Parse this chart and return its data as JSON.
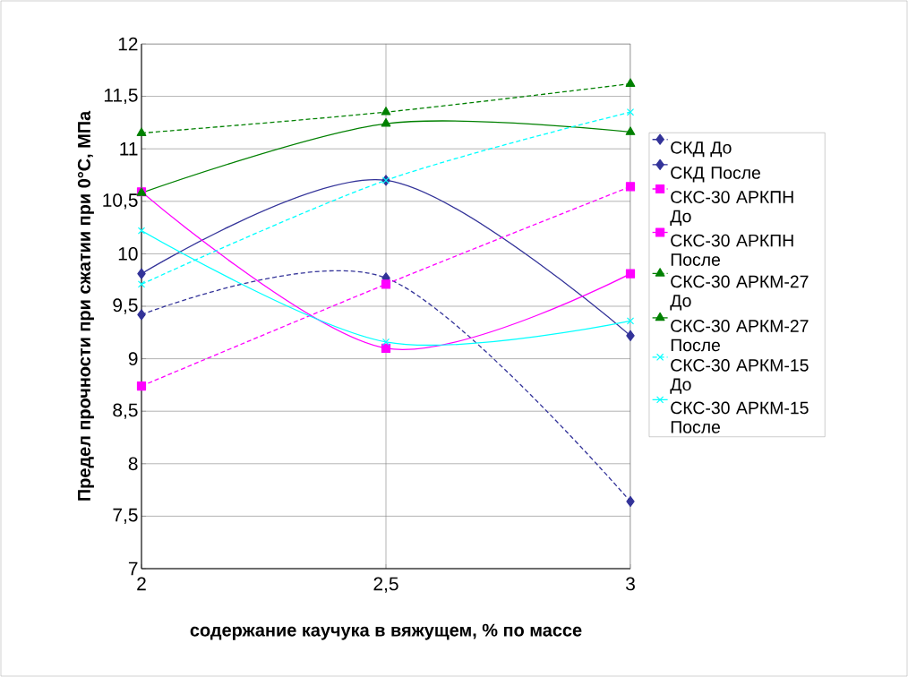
{
  "chart_data": {
    "type": "line",
    "xlabel": "содержание каучука в вяжущем, % по массе",
    "ylabel": "Предел прочности при сжатии при 0°С, МПа",
    "x": [
      2,
      2.5,
      3
    ],
    "xlim": [
      2,
      3
    ],
    "xticks": [
      2,
      {
        "value": 2.5,
        "label": "2,5"
      },
      3
    ],
    "ylim": [
      7,
      12
    ],
    "yticks": [
      7,
      {
        "value": 7.5,
        "label": "7,5"
      },
      8,
      {
        "value": 8.5,
        "label": "8,5"
      },
      9,
      {
        "value": 9.5,
        "label": "9,5"
      },
      10,
      {
        "value": 10.5,
        "label": "10,5"
      },
      11,
      {
        "value": 11.5,
        "label": "11,5"
      },
      12
    ],
    "grid": true,
    "legend": "right",
    "series": [
      {
        "name": "СКД До",
        "color": "#333399",
        "marker": "diamond",
        "line_style": "dashed",
        "values": [
          9.42,
          9.77,
          7.64
        ]
      },
      {
        "name": "СКД После",
        "color": "#333399",
        "marker": "diamond",
        "line_style": "solid",
        "values": [
          9.81,
          10.7,
          9.22
        ]
      },
      {
        "name": "СКС-30 АРКПН До",
        "color": "#ff00ff",
        "marker": "square",
        "line_style": "dashed",
        "values": [
          8.74,
          9.71,
          10.64
        ]
      },
      {
        "name": "СКС-30 АРКПН После",
        "color": "#ff00ff",
        "marker": "square",
        "line_style": "solid",
        "values": [
          10.59,
          9.1,
          9.81
        ]
      },
      {
        "name": "СКС-30 АРКМ-27 До",
        "color": "#008000",
        "marker": "triangle",
        "line_style": "dashed",
        "values": [
          11.15,
          11.35,
          11.62
        ]
      },
      {
        "name": "СКС-30 АРКМ-27 После",
        "color": "#008000",
        "marker": "triangle",
        "line_style": "solid",
        "values": [
          10.58,
          11.24,
          11.16
        ]
      },
      {
        "name": "СКС-30 АРКМ-15 До",
        "color": "#00ffff",
        "marker": "cross",
        "line_style": "dashed",
        "values": [
          9.71,
          10.7,
          11.35
        ]
      },
      {
        "name": "СКС-30 АРКМ-15 После",
        "color": "#00ffff",
        "marker": "cross",
        "line_style": "solid",
        "values": [
          10.22,
          9.16,
          9.36
        ]
      }
    ]
  }
}
